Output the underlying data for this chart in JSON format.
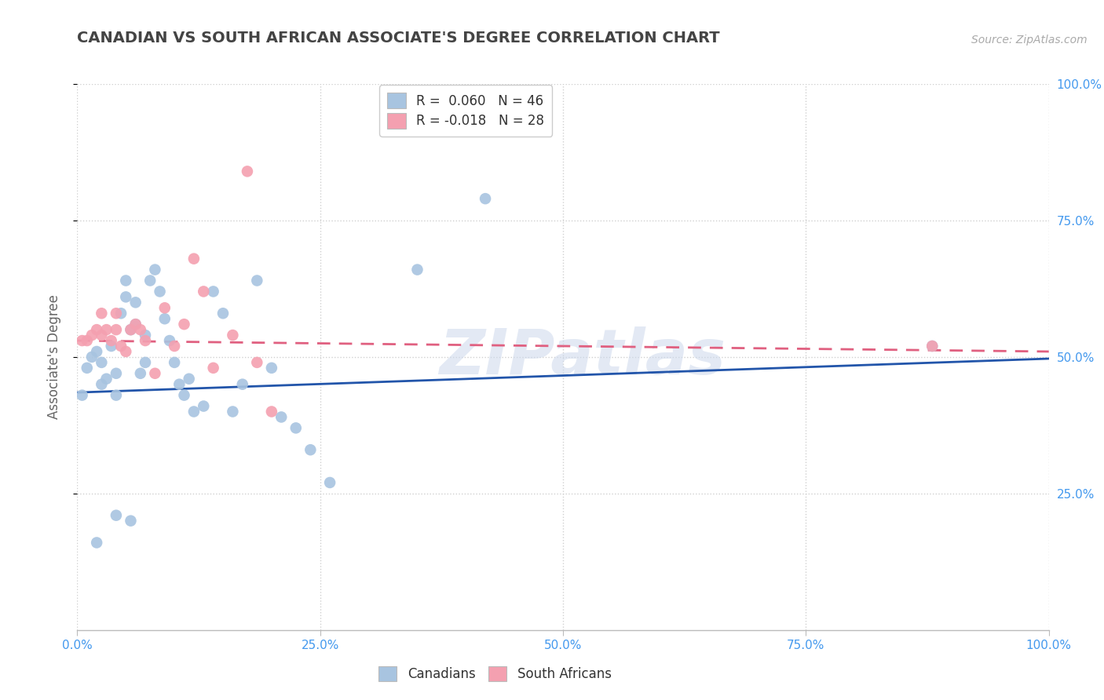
{
  "title": "CANADIAN VS SOUTH AFRICAN ASSOCIATE'S DEGREE CORRELATION CHART",
  "source": "Source: ZipAtlas.com",
  "ylabel": "Associate's Degree",
  "xlim": [
    0.0,
    1.0
  ],
  "ylim": [
    0.0,
    1.0
  ],
  "xticks": [
    0.0,
    0.25,
    0.5,
    0.75,
    1.0
  ],
  "xtick_labels": [
    "0.0%",
    "25.0%",
    "50.0%",
    "75.0%",
    "100.0%"
  ],
  "yticks": [
    0.25,
    0.5,
    0.75,
    1.0
  ],
  "right_ytick_labels": [
    "25.0%",
    "50.0%",
    "75.0%",
    "100.0%"
  ],
  "canadian_R": 0.06,
  "canadian_N": 46,
  "sa_R": -0.018,
  "sa_N": 28,
  "canadian_color": "#a8c4e0",
  "canadian_line_color": "#2255aa",
  "sa_color": "#f4a0b0",
  "sa_line_color": "#e06080",
  "background_color": "#ffffff",
  "grid_color": "#d0d0d0",
  "title_color": "#444444",
  "watermark": "ZIPatlas",
  "canadians_x": [
    0.005,
    0.01,
    0.015,
    0.02,
    0.025,
    0.025,
    0.03,
    0.035,
    0.04,
    0.04,
    0.045,
    0.05,
    0.05,
    0.055,
    0.06,
    0.06,
    0.065,
    0.07,
    0.07,
    0.075,
    0.08,
    0.085,
    0.09,
    0.095,
    0.1,
    0.105,
    0.11,
    0.115,
    0.12,
    0.13,
    0.14,
    0.15,
    0.16,
    0.17,
    0.185,
    0.2,
    0.21,
    0.225,
    0.24,
    0.26,
    0.35,
    0.42,
    0.88,
    0.02,
    0.04,
    0.055
  ],
  "canadians_y": [
    0.43,
    0.48,
    0.5,
    0.51,
    0.45,
    0.49,
    0.46,
    0.52,
    0.47,
    0.43,
    0.58,
    0.61,
    0.64,
    0.55,
    0.56,
    0.6,
    0.47,
    0.49,
    0.54,
    0.64,
    0.66,
    0.62,
    0.57,
    0.53,
    0.49,
    0.45,
    0.43,
    0.46,
    0.4,
    0.41,
    0.62,
    0.58,
    0.4,
    0.45,
    0.64,
    0.48,
    0.39,
    0.37,
    0.33,
    0.27,
    0.66,
    0.79,
    0.52,
    0.16,
    0.21,
    0.2
  ],
  "sa_x": [
    0.005,
    0.01,
    0.015,
    0.02,
    0.025,
    0.025,
    0.03,
    0.035,
    0.04,
    0.04,
    0.045,
    0.05,
    0.055,
    0.06,
    0.065,
    0.07,
    0.08,
    0.09,
    0.1,
    0.11,
    0.12,
    0.13,
    0.14,
    0.16,
    0.175,
    0.185,
    0.2,
    0.88
  ],
  "sa_y": [
    0.53,
    0.53,
    0.54,
    0.55,
    0.58,
    0.54,
    0.55,
    0.53,
    0.58,
    0.55,
    0.52,
    0.51,
    0.55,
    0.56,
    0.55,
    0.53,
    0.47,
    0.59,
    0.52,
    0.56,
    0.68,
    0.62,
    0.48,
    0.54,
    0.84,
    0.49,
    0.4,
    0.52
  ],
  "can_trend_x0": 0.0,
  "can_trend_y0": 0.435,
  "can_trend_x1": 1.0,
  "can_trend_y1": 0.497,
  "sa_trend_x0": 0.0,
  "sa_trend_y0": 0.53,
  "sa_trend_x1": 1.0,
  "sa_trend_y1": 0.51
}
